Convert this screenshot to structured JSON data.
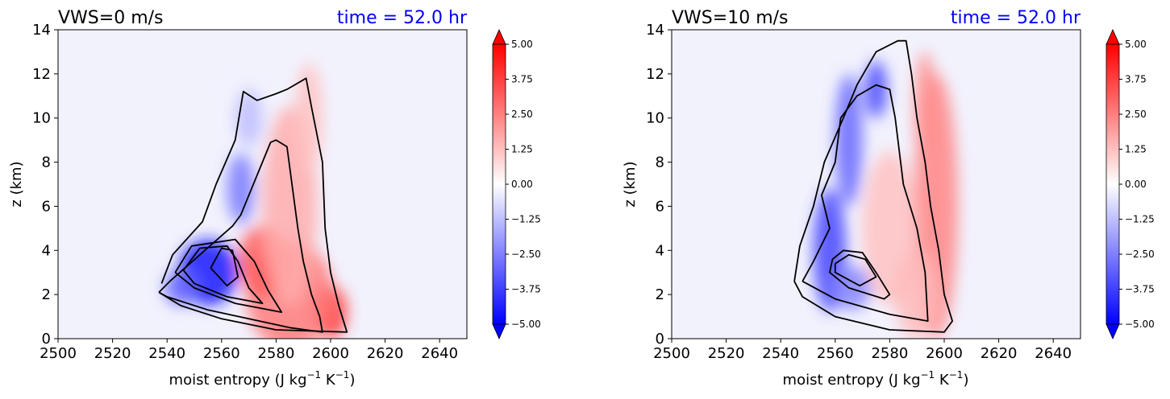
{
  "colors": {
    "background": "#f2f2fd",
    "positive": "#ff0000",
    "negative": "#0000ff",
    "contour": "#000000",
    "time_text": "#0000ff"
  },
  "chart_data": [
    {
      "type": "heatmap",
      "title": "VWS=0 m/s",
      "time_label": "time = 52.0 hr",
      "xlabel": "moist entropy (J kg",
      "xlabel_sup1": "−1",
      "xlabel_mid": " K",
      "xlabel_sup2": "−1",
      "xlabel_end": ")",
      "ylabel": "z (km)",
      "xlim": [
        2500,
        2650
      ],
      "ylim": [
        0,
        14
      ],
      "xticks": [
        "2500",
        "2520",
        "2540",
        "2560",
        "2580",
        "2600",
        "2620",
        "2640"
      ],
      "yticks": [
        "0",
        "2",
        "4",
        "6",
        "8",
        "10",
        "12",
        "14"
      ],
      "colorbar": {
        "range": [
          -5,
          5
        ],
        "extend": "both",
        "ticks": [
          "5.00",
          "3.75",
          "2.50",
          "1.25",
          "0.00",
          "−1.25",
          "−2.50",
          "−3.75",
          "−5.00"
        ]
      },
      "blobs": [
        {
          "x": 2600,
          "y": 1.2,
          "rx": 6,
          "ry": 1.2,
          "v": 4.0
        },
        {
          "x": 2585,
          "y": 2.0,
          "rx": 16,
          "ry": 2.5,
          "v": 2.6
        },
        {
          "x": 2575,
          "y": 3.5,
          "rx": 9,
          "ry": 1.6,
          "v": 3.2
        },
        {
          "x": 2585,
          "y": 6.0,
          "rx": 10,
          "ry": 4.5,
          "v": 1.6
        },
        {
          "x": 2592,
          "y": 10.0,
          "rx": 5,
          "ry": 2.5,
          "v": 1.2
        },
        {
          "x": 2555,
          "y": 3.0,
          "rx": 11,
          "ry": 1.5,
          "v": -4.5
        },
        {
          "x": 2545,
          "y": 2.3,
          "rx": 6,
          "ry": 0.8,
          "v": -3.0
        },
        {
          "x": 2567,
          "y": 6.8,
          "rx": 5,
          "ry": 1.6,
          "v": -2.6
        },
        {
          "x": 2570,
          "y": 10.0,
          "rx": 5,
          "ry": 1.3,
          "v": -1.3
        }
      ],
      "contours": [
        [
          [
            2537,
            2.1
          ],
          [
            2541,
            2.6
          ],
          [
            2552,
            3.8
          ],
          [
            2564,
            5.1
          ],
          [
            2567,
            5.6
          ],
          [
            2578,
            8.9
          ],
          [
            2580,
            9.0
          ],
          [
            2584,
            8.7
          ],
          [
            2588,
            5.0
          ],
          [
            2590,
            3.5
          ],
          [
            2593,
            2.0
          ],
          [
            2596,
            1.0
          ],
          [
            2597,
            0.3
          ],
          [
            2585,
            0.5
          ],
          [
            2555,
            1.3
          ],
          [
            2540,
            1.9
          ],
          [
            2537,
            2.1
          ]
        ],
        [
          [
            2538,
            2.5
          ],
          [
            2542,
            3.8
          ],
          [
            2553,
            5.3
          ],
          [
            2558,
            7.0
          ],
          [
            2565,
            9.0
          ],
          [
            2568,
            11.2
          ],
          [
            2573,
            10.8
          ],
          [
            2580,
            11.1
          ],
          [
            2584,
            11.3
          ],
          [
            2591,
            11.8
          ],
          [
            2593,
            10.5
          ],
          [
            2597,
            8.0
          ],
          [
            2598,
            5.0
          ],
          [
            2600,
            3.0
          ],
          [
            2603,
            1.5
          ],
          [
            2606,
            0.3
          ],
          [
            2580,
            0.4
          ],
          [
            2560,
            0.9
          ],
          [
            2545,
            1.5
          ],
          [
            2537,
            2.1
          ]
        ],
        [
          [
            2543,
            3.0
          ],
          [
            2549,
            4.2
          ],
          [
            2565,
            4.5
          ],
          [
            2572,
            3.5
          ],
          [
            2577,
            2.2
          ],
          [
            2582,
            1.2
          ],
          [
            2565,
            1.6
          ],
          [
            2550,
            2.3
          ],
          [
            2543,
            3.0
          ]
        ],
        [
          [
            2546,
            3.1
          ],
          [
            2552,
            4.1
          ],
          [
            2562,
            4.2
          ],
          [
            2566,
            3.5
          ],
          [
            2570,
            2.3
          ],
          [
            2575,
            1.6
          ],
          [
            2562,
            1.9
          ],
          [
            2550,
            2.5
          ],
          [
            2546,
            3.1
          ]
        ],
        [
          [
            2556,
            3.2
          ],
          [
            2560,
            4.1
          ],
          [
            2564,
            4.0
          ],
          [
            2566,
            2.8
          ],
          [
            2562,
            2.4
          ],
          [
            2556,
            3.2
          ]
        ]
      ]
    },
    {
      "type": "heatmap",
      "title": "VWS=10 m/s",
      "time_label": "time = 52.0 hr",
      "xlabel": "moist entropy (J kg",
      "xlabel_sup1": "−1",
      "xlabel_mid": " K",
      "xlabel_sup2": "−1",
      "xlabel_end": ")",
      "ylabel": "z (km)",
      "xlim": [
        2500,
        2650
      ],
      "ylim": [
        0,
        14
      ],
      "xticks": [
        "2500",
        "2520",
        "2540",
        "2560",
        "2580",
        "2600",
        "2620",
        "2640"
      ],
      "yticks": [
        "0",
        "2",
        "4",
        "6",
        "8",
        "10",
        "12",
        "14"
      ],
      "colorbar": {
        "range": [
          -5,
          5
        ],
        "extend": "both",
        "ticks": [
          "5.00",
          "3.75",
          "2.50",
          "1.25",
          "0.00",
          "−1.25",
          "−2.50",
          "−3.75",
          "−5.00"
        ]
      },
      "blobs": [
        {
          "x": 2597,
          "y": 6.0,
          "rx": 8,
          "ry": 6,
          "v": 2.4
        },
        {
          "x": 2593,
          "y": 10.5,
          "rx": 4,
          "ry": 2.5,
          "v": 2.2
        },
        {
          "x": 2580,
          "y": 5.0,
          "rx": 10,
          "ry": 3.5,
          "v": 1.2
        },
        {
          "x": 2590,
          "y": 2.0,
          "rx": 8,
          "ry": 2.0,
          "v": 1.4
        },
        {
          "x": 2558,
          "y": 4.0,
          "rx": 6,
          "ry": 2.8,
          "v": -3.6
        },
        {
          "x": 2565,
          "y": 9.0,
          "rx": 5,
          "ry": 3.0,
          "v": -3.0
        },
        {
          "x": 2575,
          "y": 11.3,
          "rx": 4,
          "ry": 1.3,
          "v": -3.6
        },
        {
          "x": 2566,
          "y": 2.3,
          "rx": 7,
          "ry": 1.0,
          "v": -2.4
        }
      ],
      "contours": [
        [
          [
            2545,
            2.6
          ],
          [
            2547,
            4.2
          ],
          [
            2552,
            6.0
          ],
          [
            2556,
            8.0
          ],
          [
            2563,
            10.0
          ],
          [
            2568,
            11.5
          ],
          [
            2575,
            13.0
          ],
          [
            2583,
            13.5
          ],
          [
            2586,
            13.5
          ],
          [
            2588,
            12.0
          ],
          [
            2590,
            10.0
          ],
          [
            2593,
            8.0
          ],
          [
            2595,
            6.0
          ],
          [
            2598,
            4.0
          ],
          [
            2600,
            2.0
          ],
          [
            2603,
            0.8
          ],
          [
            2600,
            0.3
          ],
          [
            2580,
            0.4
          ],
          [
            2560,
            1.0
          ],
          [
            2548,
            1.9
          ],
          [
            2545,
            2.6
          ]
        ],
        [
          [
            2548,
            2.6
          ],
          [
            2552,
            3.5
          ],
          [
            2558,
            5.0
          ],
          [
            2555,
            6.5
          ],
          [
            2560,
            8.0
          ],
          [
            2562,
            10.0
          ],
          [
            2568,
            11.0
          ],
          [
            2575,
            11.5
          ],
          [
            2580,
            11.3
          ],
          [
            2582,
            10.0
          ],
          [
            2585,
            7.0
          ],
          [
            2590,
            5.0
          ],
          [
            2593,
            3.0
          ],
          [
            2594,
            0.8
          ],
          [
            2580,
            1.1
          ],
          [
            2560,
            1.8
          ],
          [
            2548,
            2.6
          ]
        ],
        [
          [
            2559,
            3.6
          ],
          [
            2563,
            4.0
          ],
          [
            2570,
            3.9
          ],
          [
            2575,
            3.0
          ],
          [
            2580,
            2.0
          ],
          [
            2578,
            1.8
          ],
          [
            2565,
            2.3
          ],
          [
            2558,
            3.0
          ],
          [
            2559,
            3.6
          ]
        ],
        [
          [
            2560,
            3.4
          ],
          [
            2565,
            3.8
          ],
          [
            2571,
            3.6
          ],
          [
            2575,
            2.8
          ],
          [
            2569,
            2.4
          ],
          [
            2560,
            3.0
          ],
          [
            2560,
            3.4
          ]
        ]
      ]
    }
  ]
}
